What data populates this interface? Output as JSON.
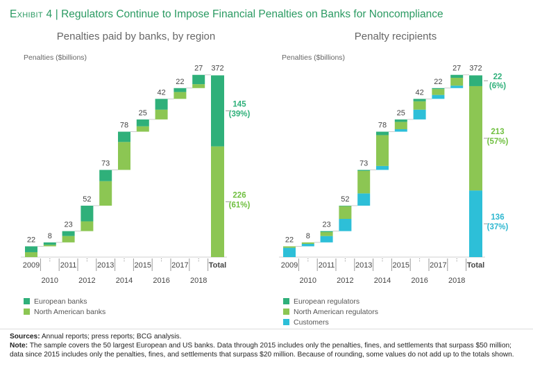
{
  "exhibit": {
    "label": "Exhibit 4",
    "separator": "|",
    "title": "Regulators Continue to Impose Financial Penalties on Banks for Noncompliance"
  },
  "colors": {
    "dark_green": "#2fb07a",
    "light_green": "#8cc653",
    "cyan": "#2dbfd8",
    "title_green": "#2a9a62",
    "value_green": "#6fbf3f",
    "value_cyan": "#2db7d0"
  },
  "chart_data": [
    {
      "type": "waterfall",
      "title": "Penalties paid by banks, by region",
      "ylabel": "Penalties ($billions)",
      "categories": [
        "2009",
        "2010",
        "2011",
        "2012",
        "2013",
        "2014",
        "2015",
        "2016",
        "2017",
        "2018",
        "Total"
      ],
      "totals": [
        "22",
        "8",
        "23",
        "52",
        "73",
        "78",
        "25",
        "42",
        "22",
        "27",
        "372"
      ],
      "total_value": 372,
      "series": [
        {
          "name": "North American banks",
          "values": [
            10,
            3,
            13,
            20,
            50,
            57,
            11,
            20,
            14,
            8,
            226
          ]
        },
        {
          "name": "European banks",
          "values": [
            12,
            5,
            10,
            32,
            23,
            21,
            14,
            22,
            8,
            19,
            145
          ]
        }
      ],
      "total_annotations": [
        {
          "series": "European banks",
          "value": "145",
          "share": "(39%)"
        },
        {
          "series": "North American banks",
          "value": "226",
          "share": "(61%)"
        }
      ],
      "legend": [
        "European banks",
        "North American banks"
      ]
    },
    {
      "type": "waterfall",
      "title": "Penalty recipients",
      "ylabel": "Penalties ($billions)",
      "categories": [
        "2009",
        "2010",
        "2011",
        "2012",
        "2013",
        "2014",
        "2015",
        "2016",
        "2017",
        "2018",
        "Total"
      ],
      "totals": [
        "22",
        "8",
        "23",
        "52",
        "73",
        "78",
        "25",
        "42",
        "22",
        "27",
        "372"
      ],
      "total_value": 372,
      "series": [
        {
          "name": "Customers",
          "values": [
            19,
            5,
            13,
            25,
            25,
            8,
            5,
            20,
            8,
            5,
            136
          ]
        },
        {
          "name": "North American regulators",
          "values": [
            3,
            3,
            8,
            26,
            46,
            63,
            15,
            17,
            12,
            16,
            213
          ]
        },
        {
          "name": "European regulators",
          "values": [
            0,
            0,
            2,
            1,
            2,
            7,
            5,
            5,
            2,
            6,
            22
          ]
        }
      ],
      "total_annotations": [
        {
          "series": "European regulators",
          "value": "22",
          "share": "(6%)"
        },
        {
          "series": "North American regulators",
          "value": "213",
          "share": "(57%)"
        },
        {
          "series": "Customers",
          "value": "136",
          "share": "(37%)"
        }
      ],
      "legend": [
        "European regulators",
        "North American regulators",
        "Customers"
      ]
    }
  ],
  "footnotes": {
    "sources_label": "Sources:",
    "sources_text": "Annual reports; press reports; BCG analysis.",
    "note_label": "Note:",
    "note_text": "The sample covers the 50 largest European and US banks. Data through 2015 includes only the penalties, fines, and settlements that surpass $50 million; data since 2015 includes only the penalties, fines, and settlements that surpass $20 million. Because of rounding, some values do not add up to the totals shown."
  }
}
